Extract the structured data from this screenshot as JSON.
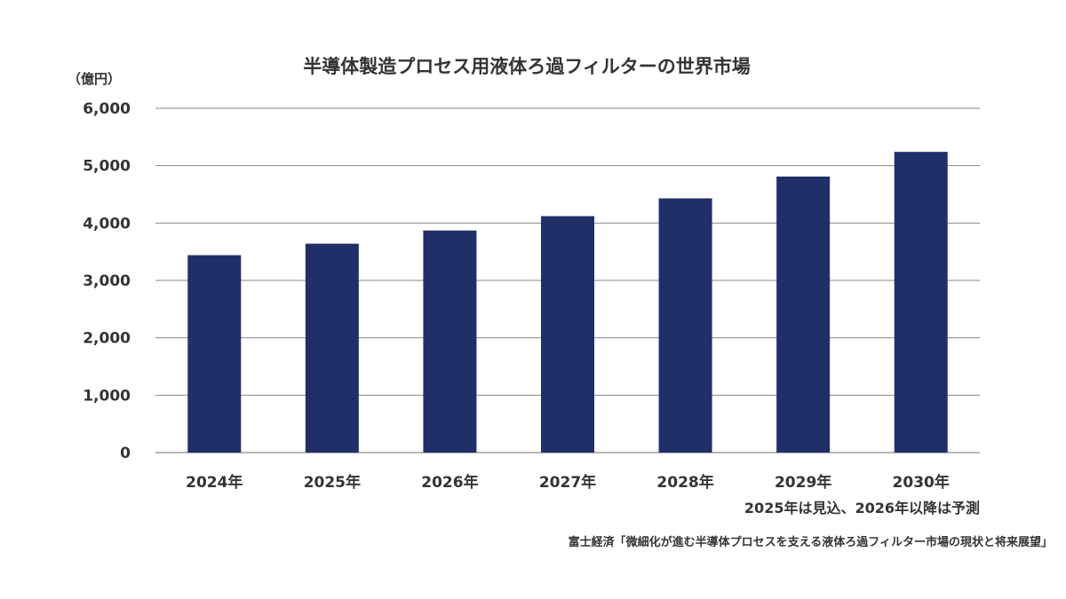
{
  "chart_data": {
    "type": "bar",
    "title": "半導体製造プロセス用液体ろ過フィルターの世界市場",
    "unit_label": "（億円）",
    "categories": [
      "2024年",
      "2025年",
      "2026年",
      "2027年",
      "2028年",
      "2029年",
      "2030年"
    ],
    "values": [
      3440,
      3640,
      3870,
      4120,
      4430,
      4810,
      5240
    ],
    "ylim": [
      0,
      6000
    ],
    "yticks": [
      0,
      1000,
      2000,
      3000,
      4000,
      5000,
      6000
    ],
    "ytick_labels": [
      "0",
      "1,000",
      "2,000",
      "3,000",
      "4,000",
      "5,000",
      "6,000"
    ],
    "grid": true,
    "bar_color": "#212f68",
    "note": "2025年は見込、2026年以降は予測",
    "source": "富士経済「微細化が進む半導体プロセスを支える液体ろ過フィルター市場の現状と将来展望」"
  }
}
